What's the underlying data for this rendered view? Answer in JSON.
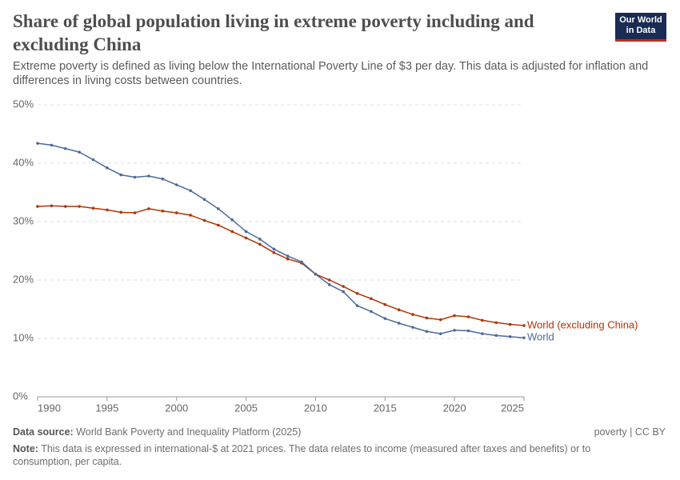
{
  "chart_data": {
    "type": "line",
    "title": "Share of global population living in extreme poverty including and excluding China",
    "subtitle": "Extreme poverty is defined as living below the International Poverty Line of $3 per day. This data is adjusted for inflation and differences in living costs between countries.",
    "logo": "Our World in Data",
    "source_label": "Data source:",
    "source": "World Bank Poverty and Inequality Platform (2025)",
    "license": "poverty | CC BY",
    "note_label": "Note:",
    "note": "This data is expressed in international-$ at 2021 prices. The data relates to income (measured after taxes and benefits) or to consumption, per capita.",
    "x": [
      1990,
      1991,
      1992,
      1993,
      1994,
      1995,
      1996,
      1997,
      1998,
      1999,
      2000,
      2001,
      2002,
      2003,
      2004,
      2005,
      2006,
      2007,
      2008,
      2009,
      2010,
      2011,
      2012,
      2013,
      2014,
      2015,
      2016,
      2017,
      2018,
      2019,
      2020,
      2021,
      2022,
      2023,
      2024,
      2025
    ],
    "series": [
      {
        "name": "World (excluding China)",
        "color": "#b13507",
        "values": [
          32.6,
          32.7,
          32.6,
          32.6,
          32.3,
          32.0,
          31.6,
          31.5,
          32.2,
          31.8,
          31.5,
          31.1,
          30.2,
          29.4,
          28.3,
          27.2,
          26.1,
          24.7,
          23.6,
          22.9,
          21.0,
          20.0,
          18.9,
          17.7,
          16.8,
          15.8,
          14.9,
          14.1,
          13.5,
          13.2,
          13.9,
          13.7,
          13.1,
          12.7,
          12.4,
          12.2
        ]
      },
      {
        "name": "World",
        "color": "#4c6a9c",
        "values": [
          43.4,
          43.1,
          42.5,
          41.9,
          40.6,
          39.2,
          38.0,
          37.6,
          37.8,
          37.3,
          36.3,
          35.3,
          33.8,
          32.2,
          30.3,
          28.3,
          27.0,
          25.3,
          24.1,
          23.1,
          21.0,
          19.2,
          18.0,
          15.6,
          14.6,
          13.4,
          12.6,
          11.9,
          11.2,
          10.8,
          11.4,
          11.3,
          10.8,
          10.5,
          10.3,
          10.1
        ]
      }
    ],
    "xlim": [
      1990,
      2025
    ],
    "xticks": [
      1990,
      1995,
      2000,
      2005,
      2010,
      2015,
      2020,
      2025
    ],
    "ylim": [
      0,
      50
    ],
    "yticks": [
      {
        "value": 0,
        "label": "0%"
      },
      {
        "value": 10,
        "label": "10%"
      },
      {
        "value": 20,
        "label": "20%"
      },
      {
        "value": 30,
        "label": "30%"
      },
      {
        "value": 40,
        "label": "40%"
      },
      {
        "value": 50,
        "label": "50%"
      }
    ],
    "grid": true
  }
}
